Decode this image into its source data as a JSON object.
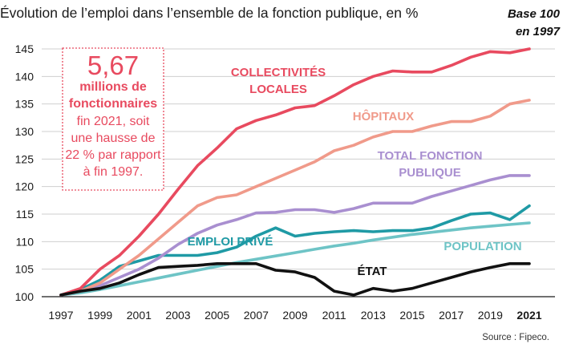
{
  "chart_data": {
    "type": "line",
    "title": "Évolution de l’emploi dans l’ensemble de la fonction publique, en %",
    "subtitle_lines": [
      "Base 100",
      "en 1997"
    ],
    "source": "Source : Fipeco.",
    "x": [
      1997,
      1998,
      1999,
      2000,
      2001,
      2002,
      2003,
      2004,
      2005,
      2006,
      2007,
      2008,
      2009,
      2010,
      2011,
      2012,
      2013,
      2014,
      2015,
      2016,
      2017,
      2018,
      2019,
      2020,
      2021
    ],
    "x_ticks": [
      "1997",
      "1999",
      "2001",
      "2003",
      "2005",
      "2007",
      "2009",
      "2011",
      "2013",
      "2015",
      "2017",
      "2019",
      "2021"
    ],
    "y_ticks": [
      "100",
      "105",
      "110",
      "115",
      "120",
      "125",
      "130",
      "135",
      "140",
      "145"
    ],
    "ylim": [
      100,
      145
    ],
    "xlim": [
      1997,
      2021
    ],
    "grid": true,
    "series": [
      {
        "name": "COLLECTIVITÉS LOCALES",
        "label_lines": [
          "COLLECTIVITÉS",
          "LOCALES"
        ],
        "color": "#e84a5f",
        "values": [
          100.3,
          101.5,
          105.0,
          107.5,
          111.0,
          115.0,
          119.5,
          123.8,
          127.0,
          130.5,
          132.0,
          133.0,
          134.3,
          134.7,
          136.5,
          138.5,
          140.0,
          141.0,
          140.8,
          140.8,
          142.0,
          143.5,
          144.5,
          144.3,
          145.0
        ]
      },
      {
        "name": "HÔPITAUX",
        "label_lines": [
          "HÔPITAUX"
        ],
        "color": "#f09a8a",
        "values": [
          100.3,
          101.0,
          102.5,
          105.0,
          107.5,
          110.5,
          113.5,
          116.5,
          118.0,
          118.5,
          120.0,
          121.5,
          123.0,
          124.5,
          126.5,
          127.5,
          129.0,
          130.0,
          130.0,
          131.0,
          131.8,
          131.8,
          132.8,
          135.0,
          135.7
        ]
      },
      {
        "name": "TOTAL FONCTION PUBLIQUE",
        "label_lines": [
          "TOTAL FONCTION",
          "PUBLIQUE"
        ],
        "color": "#a98fd0",
        "values": [
          100.3,
          101.0,
          102.0,
          103.5,
          105.0,
          107.0,
          109.5,
          111.5,
          113.0,
          114.0,
          115.2,
          115.3,
          115.8,
          115.8,
          115.3,
          116.0,
          117.0,
          117.0,
          117.0,
          118.2,
          119.2,
          120.2,
          121.2,
          122.0,
          122.0
        ]
      },
      {
        "name": "EMPLOI PRIVÉ",
        "label_lines": [
          "EMPLOI PRIVÉ"
        ],
        "color": "#1f9aa5",
        "values": [
          100.3,
          101.3,
          103.0,
          105.5,
          106.5,
          107.5,
          107.5,
          107.5,
          108.0,
          109.0,
          111.0,
          112.5,
          111.0,
          111.5,
          111.8,
          112.0,
          111.8,
          112.0,
          112.0,
          112.5,
          113.8,
          115.0,
          115.2,
          114.0,
          116.5
        ]
      },
      {
        "name": "POPULATION",
        "label_lines": [
          "POPULATION"
        ],
        "color": "#6ec4c6",
        "values": [
          100.3,
          100.7,
          101.3,
          102.0,
          102.7,
          103.4,
          104.1,
          104.8,
          105.5,
          106.2,
          106.8,
          107.4,
          108.0,
          108.6,
          109.2,
          109.7,
          110.3,
          110.8,
          111.3,
          111.7,
          112.1,
          112.5,
          112.8,
          113.1,
          113.4
        ]
      },
      {
        "name": "ÉTAT",
        "label_lines": [
          "ÉTAT"
        ],
        "color": "#111111",
        "values": [
          100.3,
          101.0,
          101.5,
          102.5,
          104.0,
          105.3,
          105.5,
          105.7,
          106.0,
          106.0,
          106.0,
          104.8,
          104.5,
          103.5,
          101.0,
          100.3,
          101.5,
          101.0,
          101.5,
          102.5,
          103.5,
          104.5,
          105.3,
          106.0,
          106.0
        ]
      }
    ]
  },
  "callout": {
    "big_number": "5,67",
    "bold_lines": [
      "millions de",
      "fonctionnaires"
    ],
    "text_lines": [
      "fin 2021, soit",
      "une hausse de",
      "22 % par rapport",
      "à fin 1997."
    ],
    "color": "#e84a5f"
  }
}
